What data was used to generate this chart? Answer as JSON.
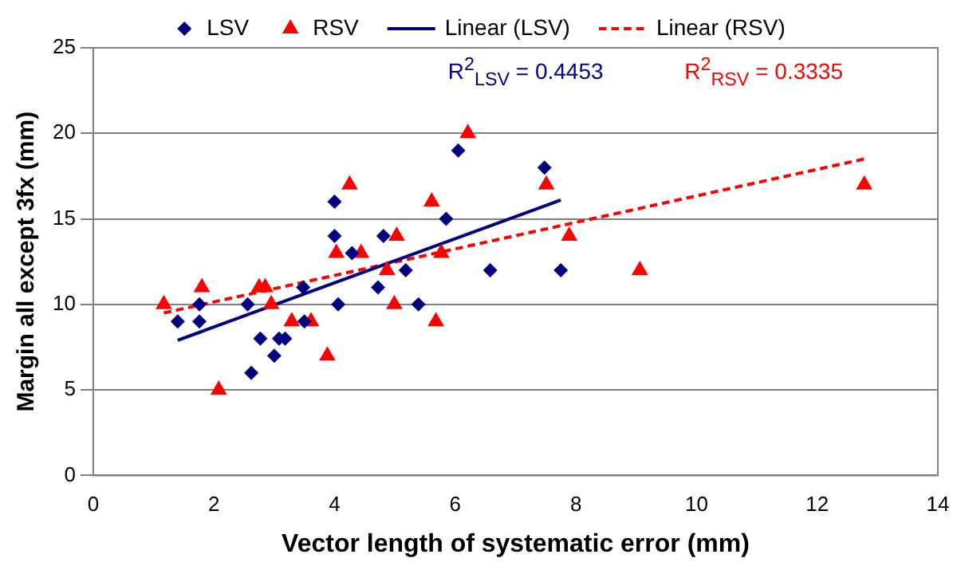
{
  "chart_data": {
    "type": "scatter",
    "xlabel": "Vector length of systematic error (mm)",
    "ylabel": "Margin all except 3fx (mm)",
    "xlim": [
      0,
      14
    ],
    "xticks": [
      0,
      2,
      4,
      6,
      8,
      10,
      12,
      14
    ],
    "ylim": [
      0,
      25
    ],
    "yticks": [
      0,
      5,
      10,
      15,
      20,
      25
    ],
    "grid": "y",
    "legend": "top",
    "annotations": [
      "R$^{2}$$_{LSV}$ = 0.4453",
      "R$^{2}$$_{RSV}$ = 0.3335"
    ],
    "series": [
      {
        "name": "LSV",
        "type": "scatter",
        "marker": "diamond",
        "color": "#000080",
        "x": [
          1.4,
          1.76,
          1.76,
          2.56,
          2.62,
          2.77,
          3.0,
          3.08,
          3.18,
          3.48,
          3.5,
          4.0,
          4.0,
          4.06,
          4.29,
          4.81,
          4.72,
          5.18,
          5.39,
          5.85,
          6.05,
          6.58,
          7.48,
          7.75
        ],
        "values": [
          9,
          9,
          10,
          10,
          6,
          8,
          7,
          8,
          8,
          11,
          9,
          16,
          14,
          10,
          13,
          14,
          11,
          12,
          10,
          15,
          19,
          12,
          18,
          12
        ]
      },
      {
        "name": "RSV",
        "type": "scatter",
        "marker": "triangle",
        "color": "#ff0000",
        "x": [
          1.17,
          1.8,
          2.08,
          2.75,
          2.85,
          2.95,
          3.29,
          3.61,
          3.88,
          4.03,
          4.25,
          4.44,
          4.87,
          4.99,
          5.03,
          5.61,
          5.68,
          5.77,
          6.21,
          7.51,
          7.89,
          9.06,
          12.78
        ],
        "values": [
          10,
          11,
          5,
          11,
          11,
          10,
          9,
          9,
          7,
          13,
          17,
          13,
          12,
          10,
          14,
          16,
          9,
          13,
          20,
          17,
          14,
          12,
          17
        ]
      },
      {
        "name": "Linear (LSV)",
        "type": "line",
        "marker": "none",
        "line_style": "solid",
        "color": "#000080",
        "x": [
          1.4,
          7.75
        ],
        "values": [
          7.9,
          16.1
        ]
      },
      {
        "name": "Linear (RSV)",
        "type": "line",
        "marker": "none",
        "line_style": "dashed",
        "color": "#ff0000",
        "x": [
          1.17,
          12.78
        ],
        "values": [
          9.5,
          18.5
        ]
      }
    ]
  }
}
